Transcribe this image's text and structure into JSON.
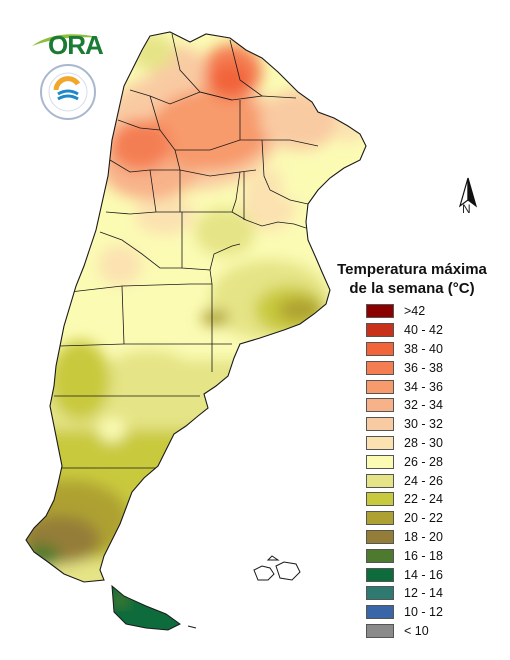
{
  "logo": {
    "text": "ORA"
  },
  "north_arrow": {
    "label": "N"
  },
  "legend": {
    "title_line1": "Temperatura máxima",
    "title_line2": "de la semana (°C)",
    "items": [
      {
        "label": ">42",
        "color": "#8b0000"
      },
      {
        "label": "40 - 42",
        "color": "#c8321a"
      },
      {
        "label": "38 - 40",
        "color": "#f2643a"
      },
      {
        "label": "36 - 38",
        "color": "#f47e52"
      },
      {
        "label": "34 - 36",
        "color": "#f79a6c"
      },
      {
        "label": "32 - 34",
        "color": "#f8b28a"
      },
      {
        "label": "30 - 32",
        "color": "#f9cba3"
      },
      {
        "label": "28 - 30",
        "color": "#fbe2b0"
      },
      {
        "label": "26 - 28",
        "color": "#fbfbb4"
      },
      {
        "label": "24 - 26",
        "color": "#e5e486"
      },
      {
        "label": "22 - 24",
        "color": "#c9c93d"
      },
      {
        "label": "20 - 22",
        "color": "#aea133"
      },
      {
        "label": "18 - 20",
        "color": "#947d38"
      },
      {
        "label": "16 - 18",
        "color": "#4d7a2f"
      },
      {
        "label": "14 - 16",
        "color": "#0d6b3c"
      },
      {
        "label": "12 - 14",
        "color": "#2f7a70"
      },
      {
        "label": "10 - 12",
        "color": "#3a66a8"
      },
      {
        "label": "< 10",
        "color": "#8a8a8a"
      }
    ]
  },
  "colors": {
    "border": "#1a1a1a",
    "logo_green": "#1b7a34"
  }
}
